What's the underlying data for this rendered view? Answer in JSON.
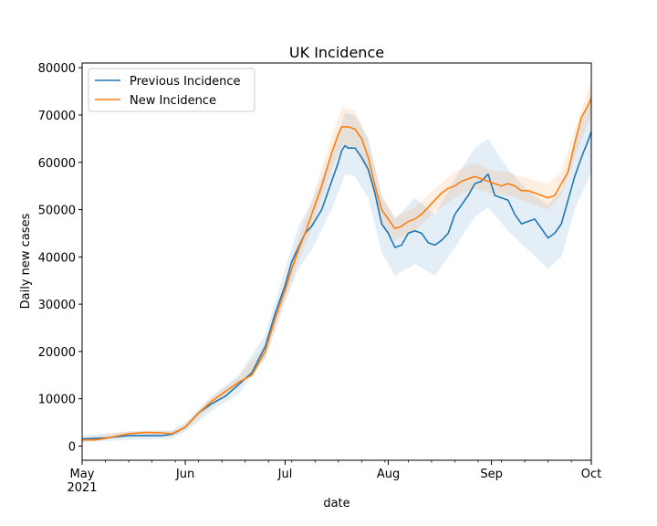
{
  "chart_data": {
    "type": "line",
    "title": "UK Incidence",
    "xlabel": "date",
    "ylabel": "Daily new cases",
    "xlim": [
      "2021-05-01",
      "2021-10-01"
    ],
    "ylim": [
      -3000,
      81000
    ],
    "x_ticks": [
      {
        "date": "2021-05-01",
        "label": "May",
        "sublabel": "2021"
      },
      {
        "date": "2021-06-01",
        "label": "Jun",
        "sublabel": ""
      },
      {
        "date": "2021-07-01",
        "label": "Jul",
        "sublabel": ""
      },
      {
        "date": "2021-08-01",
        "label": "Aug",
        "sublabel": ""
      },
      {
        "date": "2021-09-01",
        "label": "Sep",
        "sublabel": ""
      },
      {
        "date": "2021-10-01",
        "label": "Oct",
        "sublabel": ""
      }
    ],
    "y_ticks": [
      0,
      10000,
      20000,
      30000,
      40000,
      50000,
      60000,
      70000,
      80000
    ],
    "grid": false,
    "legend_position": "top-left",
    "series": [
      {
        "name": "Previous Incidence",
        "color": "#1f77b4",
        "points": [
          [
            "2021-05-01",
            1500
          ],
          [
            "2021-05-08",
            1700
          ],
          [
            "2021-05-12",
            2000
          ],
          [
            "2021-05-15",
            2200
          ],
          [
            "2021-05-20",
            2200
          ],
          [
            "2021-05-25",
            2200
          ],
          [
            "2021-05-28",
            2500
          ],
          [
            "2021-06-01",
            4000
          ],
          [
            "2021-06-05",
            7000
          ],
          [
            "2021-06-09",
            9000
          ],
          [
            "2021-06-13",
            10500
          ],
          [
            "2021-06-17",
            13000
          ],
          [
            "2021-06-21",
            15500
          ],
          [
            "2021-06-25",
            21000
          ],
          [
            "2021-06-28",
            28000
          ],
          [
            "2021-07-01",
            34000
          ],
          [
            "2021-07-03",
            39000
          ],
          [
            "2021-07-05",
            42000
          ],
          [
            "2021-07-07",
            45000
          ],
          [
            "2021-07-09",
            46500
          ],
          [
            "2021-07-12",
            50000
          ],
          [
            "2021-07-15",
            56000
          ],
          [
            "2021-07-17",
            60000
          ],
          [
            "2021-07-18",
            62500
          ],
          [
            "2021-07-19",
            63500
          ],
          [
            "2021-07-20",
            63000
          ],
          [
            "2021-07-22",
            63000
          ],
          [
            "2021-07-24",
            61000
          ],
          [
            "2021-07-26",
            58500
          ],
          [
            "2021-07-28",
            53500
          ],
          [
            "2021-07-30",
            47000
          ],
          [
            "2021-08-01",
            45000
          ],
          [
            "2021-08-03",
            42000
          ],
          [
            "2021-08-05",
            42500
          ],
          [
            "2021-08-07",
            45000
          ],
          [
            "2021-08-09",
            45500
          ],
          [
            "2021-08-11",
            45000
          ],
          [
            "2021-08-13",
            43000
          ],
          [
            "2021-08-15",
            42500
          ],
          [
            "2021-08-17",
            43500
          ],
          [
            "2021-08-19",
            45000
          ],
          [
            "2021-08-21",
            49000
          ],
          [
            "2021-08-23",
            51000
          ],
          [
            "2021-08-25",
            53000
          ],
          [
            "2021-08-27",
            55500
          ],
          [
            "2021-08-29",
            56000
          ],
          [
            "2021-08-31",
            57500
          ],
          [
            "2021-09-02",
            53000
          ],
          [
            "2021-09-04",
            52500
          ],
          [
            "2021-09-06",
            52000
          ],
          [
            "2021-09-08",
            49000
          ],
          [
            "2021-09-10",
            47000
          ],
          [
            "2021-09-12",
            47500
          ],
          [
            "2021-09-14",
            48000
          ],
          [
            "2021-09-16",
            46000
          ],
          [
            "2021-09-18",
            44000
          ],
          [
            "2021-09-20",
            45000
          ],
          [
            "2021-09-22",
            47000
          ],
          [
            "2021-09-24",
            52000
          ],
          [
            "2021-09-26",
            57000
          ],
          [
            "2021-09-28",
            61000
          ],
          [
            "2021-09-30",
            64500
          ],
          [
            "2021-10-01",
            66500
          ]
        ],
        "band": [
          [
            "2021-05-01",
            800,
            2200
          ],
          [
            "2021-05-15",
            1300,
            3100
          ],
          [
            "2021-05-28",
            1600,
            3400
          ],
          [
            "2021-06-01",
            3000,
            5000
          ],
          [
            "2021-06-09",
            7500,
            10500
          ],
          [
            "2021-06-17",
            11000,
            15000
          ],
          [
            "2021-06-25",
            18500,
            23500
          ],
          [
            "2021-07-01",
            30500,
            37500
          ],
          [
            "2021-07-05",
            37500,
            46500
          ],
          [
            "2021-07-09",
            41500,
            51500
          ],
          [
            "2021-07-15",
            50000,
            62000
          ],
          [
            "2021-07-19",
            57500,
            70500
          ],
          [
            "2021-07-22",
            57000,
            70000
          ],
          [
            "2021-07-26",
            52500,
            65000
          ],
          [
            "2021-07-30",
            41000,
            53000
          ],
          [
            "2021-08-03",
            36000,
            48000
          ],
          [
            "2021-08-09",
            38500,
            52500
          ],
          [
            "2021-08-15",
            36000,
            49000
          ],
          [
            "2021-08-21",
            42000,
            56500
          ],
          [
            "2021-08-27",
            48500,
            63000
          ],
          [
            "2021-08-31",
            50500,
            65000
          ],
          [
            "2021-09-06",
            45500,
            58500
          ],
          [
            "2021-09-12",
            41500,
            54000
          ],
          [
            "2021-09-18",
            37500,
            51000
          ],
          [
            "2021-09-22",
            40000,
            54000
          ],
          [
            "2021-09-26",
            50000,
            64000
          ],
          [
            "2021-10-01",
            58000,
            75000
          ]
        ]
      },
      {
        "name": "New Incidence",
        "color": "#ff7f0e",
        "points": [
          [
            "2021-05-01",
            1300
          ],
          [
            "2021-05-05",
            1300
          ],
          [
            "2021-05-08",
            1600
          ],
          [
            "2021-05-12",
            2200
          ],
          [
            "2021-05-15",
            2600
          ],
          [
            "2021-05-20",
            2900
          ],
          [
            "2021-05-25",
            2800
          ],
          [
            "2021-05-28",
            2600
          ],
          [
            "2021-06-01",
            4000
          ],
          [
            "2021-06-05",
            7000
          ],
          [
            "2021-06-09",
            9500
          ],
          [
            "2021-06-13",
            11500
          ],
          [
            "2021-06-17",
            13500
          ],
          [
            "2021-06-21",
            15000
          ],
          [
            "2021-06-25",
            20000
          ],
          [
            "2021-06-28",
            27000
          ],
          [
            "2021-07-01",
            33000
          ],
          [
            "2021-07-03",
            37500
          ],
          [
            "2021-07-05",
            41500
          ],
          [
            "2021-07-07",
            45000
          ],
          [
            "2021-07-09",
            49000
          ],
          [
            "2021-07-12",
            55000
          ],
          [
            "2021-07-15",
            62000
          ],
          [
            "2021-07-17",
            66000
          ],
          [
            "2021-07-18",
            67500
          ],
          [
            "2021-07-20",
            67500
          ],
          [
            "2021-07-22",
            67000
          ],
          [
            "2021-07-24",
            65000
          ],
          [
            "2021-07-26",
            61000
          ],
          [
            "2021-07-28",
            55000
          ],
          [
            "2021-07-30",
            50000
          ],
          [
            "2021-08-01",
            48000
          ],
          [
            "2021-08-03",
            46000
          ],
          [
            "2021-08-05",
            46500
          ],
          [
            "2021-08-07",
            47500
          ],
          [
            "2021-08-09",
            48000
          ],
          [
            "2021-08-11",
            49000
          ],
          [
            "2021-08-13",
            50500
          ],
          [
            "2021-08-15",
            52000
          ],
          [
            "2021-08-17",
            53500
          ],
          [
            "2021-08-19",
            54500
          ],
          [
            "2021-08-21",
            55000
          ],
          [
            "2021-08-23",
            56000
          ],
          [
            "2021-08-25",
            56500
          ],
          [
            "2021-08-27",
            57000
          ],
          [
            "2021-08-29",
            56500
          ],
          [
            "2021-08-31",
            56000
          ],
          [
            "2021-09-02",
            55500
          ],
          [
            "2021-09-04",
            55000
          ],
          [
            "2021-09-06",
            55500
          ],
          [
            "2021-09-08",
            55000
          ],
          [
            "2021-09-10",
            54000
          ],
          [
            "2021-09-12",
            54000
          ],
          [
            "2021-09-14",
            53500
          ],
          [
            "2021-09-16",
            53000
          ],
          [
            "2021-09-18",
            52500
          ],
          [
            "2021-09-20",
            53000
          ],
          [
            "2021-09-22",
            55500
          ],
          [
            "2021-09-24",
            58000
          ],
          [
            "2021-09-26",
            64000
          ],
          [
            "2021-09-28",
            69500
          ],
          [
            "2021-09-30",
            72000
          ],
          [
            "2021-10-01",
            73500
          ]
        ],
        "band": [
          [
            "2021-05-01",
            900,
            1700
          ],
          [
            "2021-05-15",
            2100,
            3100
          ],
          [
            "2021-05-28",
            2100,
            3100
          ],
          [
            "2021-06-01",
            3400,
            4600
          ],
          [
            "2021-06-09",
            8500,
            10500
          ],
          [
            "2021-06-17",
            12500,
            14500
          ],
          [
            "2021-06-25",
            18500,
            21500
          ],
          [
            "2021-07-01",
            31000,
            35000
          ],
          [
            "2021-07-05",
            39000,
            44000
          ],
          [
            "2021-07-09",
            46000,
            52000
          ],
          [
            "2021-07-15",
            58500,
            65500
          ],
          [
            "2021-07-18",
            63500,
            71500
          ],
          [
            "2021-07-22",
            63000,
            71000
          ],
          [
            "2021-07-26",
            57500,
            64500
          ],
          [
            "2021-07-30",
            47000,
            53000
          ],
          [
            "2021-08-03",
            43500,
            48500
          ],
          [
            "2021-08-09",
            45500,
            50500
          ],
          [
            "2021-08-15",
            49500,
            54500
          ],
          [
            "2021-08-21",
            52500,
            58000
          ],
          [
            "2021-08-27",
            54500,
            60000
          ],
          [
            "2021-08-31",
            53500,
            58500
          ],
          [
            "2021-09-06",
            53000,
            58000
          ],
          [
            "2021-09-12",
            51500,
            56500
          ],
          [
            "2021-09-18",
            50000,
            55500
          ],
          [
            "2021-09-22",
            53000,
            58000
          ],
          [
            "2021-09-26",
            61000,
            67000
          ],
          [
            "2021-10-01",
            70000,
            77000
          ]
        ]
      }
    ]
  }
}
